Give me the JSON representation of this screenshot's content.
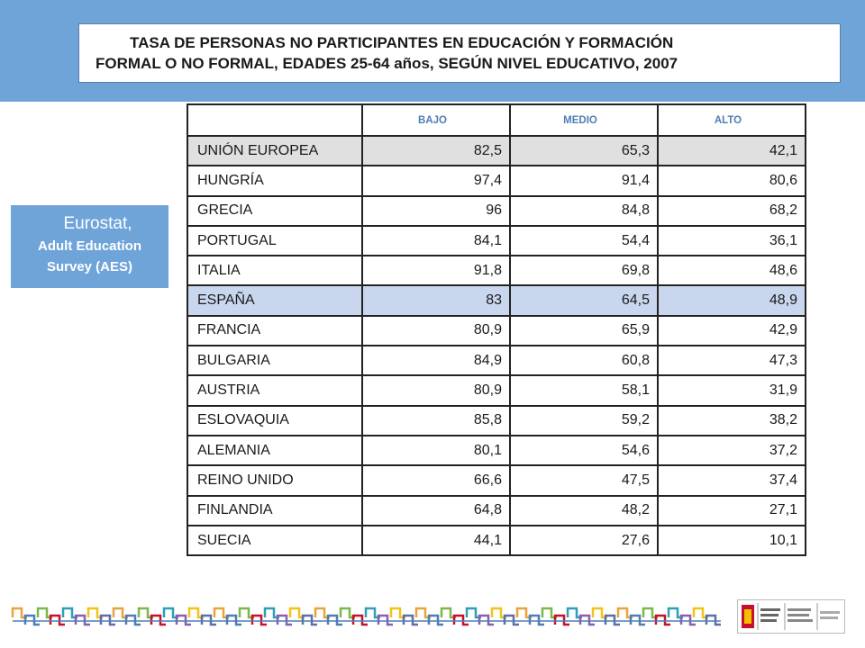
{
  "title": {
    "line1": "TASA DE PERSONAS NO PARTICIPANTES EN EDUCACIÓN Y FORMACIÓN",
    "line2": "FORMAL O NO FORMAL, EDADES 25-64 años, SEGÚN NIVEL EDUCATIVO, 2007"
  },
  "source": {
    "line1": "Eurostat,",
    "line2": "Adult Education",
    "line3": "Survey (AES)"
  },
  "table": {
    "headers": [
      "",
      "BAJO",
      "MEDIO",
      "ALTO"
    ],
    "rows": [
      {
        "name": "UNIÓN EUROPEA",
        "values": [
          "82,5",
          "65,3",
          "42,1"
        ]
      },
      {
        "name": "HUNGRÍA",
        "values": [
          "97,4",
          "91,4",
          "80,6"
        ]
      },
      {
        "name": "GRECIA",
        "values": [
          "96",
          "84,8",
          "68,2"
        ]
      },
      {
        "name": "PORTUGAL",
        "values": [
          "84,1",
          "54,4",
          "36,1"
        ]
      },
      {
        "name": "ITALIA",
        "values": [
          "91,8",
          "69,8",
          "48,6"
        ]
      },
      {
        "name": "ESPAÑA",
        "values": [
          "83",
          "64,5",
          "48,9"
        ]
      },
      {
        "name": "FRANCIA",
        "values": [
          "80,9",
          "65,9",
          "42,9"
        ]
      },
      {
        "name": "BULGARIA",
        "values": [
          "84,9",
          "60,8",
          "47,3"
        ]
      },
      {
        "name": "AUSTRIA",
        "values": [
          "80,9",
          "58,1",
          "31,9"
        ]
      },
      {
        "name": "ESLOVAQUIA",
        "values": [
          "85,8",
          "59,2",
          "38,2"
        ]
      },
      {
        "name": "ALEMANIA",
        "values": [
          "80,1",
          "54,6",
          "37,2"
        ]
      },
      {
        "name": "REINO UNIDO",
        "values": [
          "66,6",
          "47,5",
          "37,4"
        ]
      },
      {
        "name": "FINLANDIA",
        "values": [
          "64,8",
          "48,2",
          "27,1"
        ]
      },
      {
        "name": "SUECIA",
        "values": [
          "44,1",
          "27,6",
          "10,1"
        ]
      }
    ]
  },
  "colors": {
    "header_band": "#6fa4d9",
    "header_text": "#4f7eb5",
    "eu_row": "#e0e0e0",
    "spain_row": "#c9d7ee"
  }
}
